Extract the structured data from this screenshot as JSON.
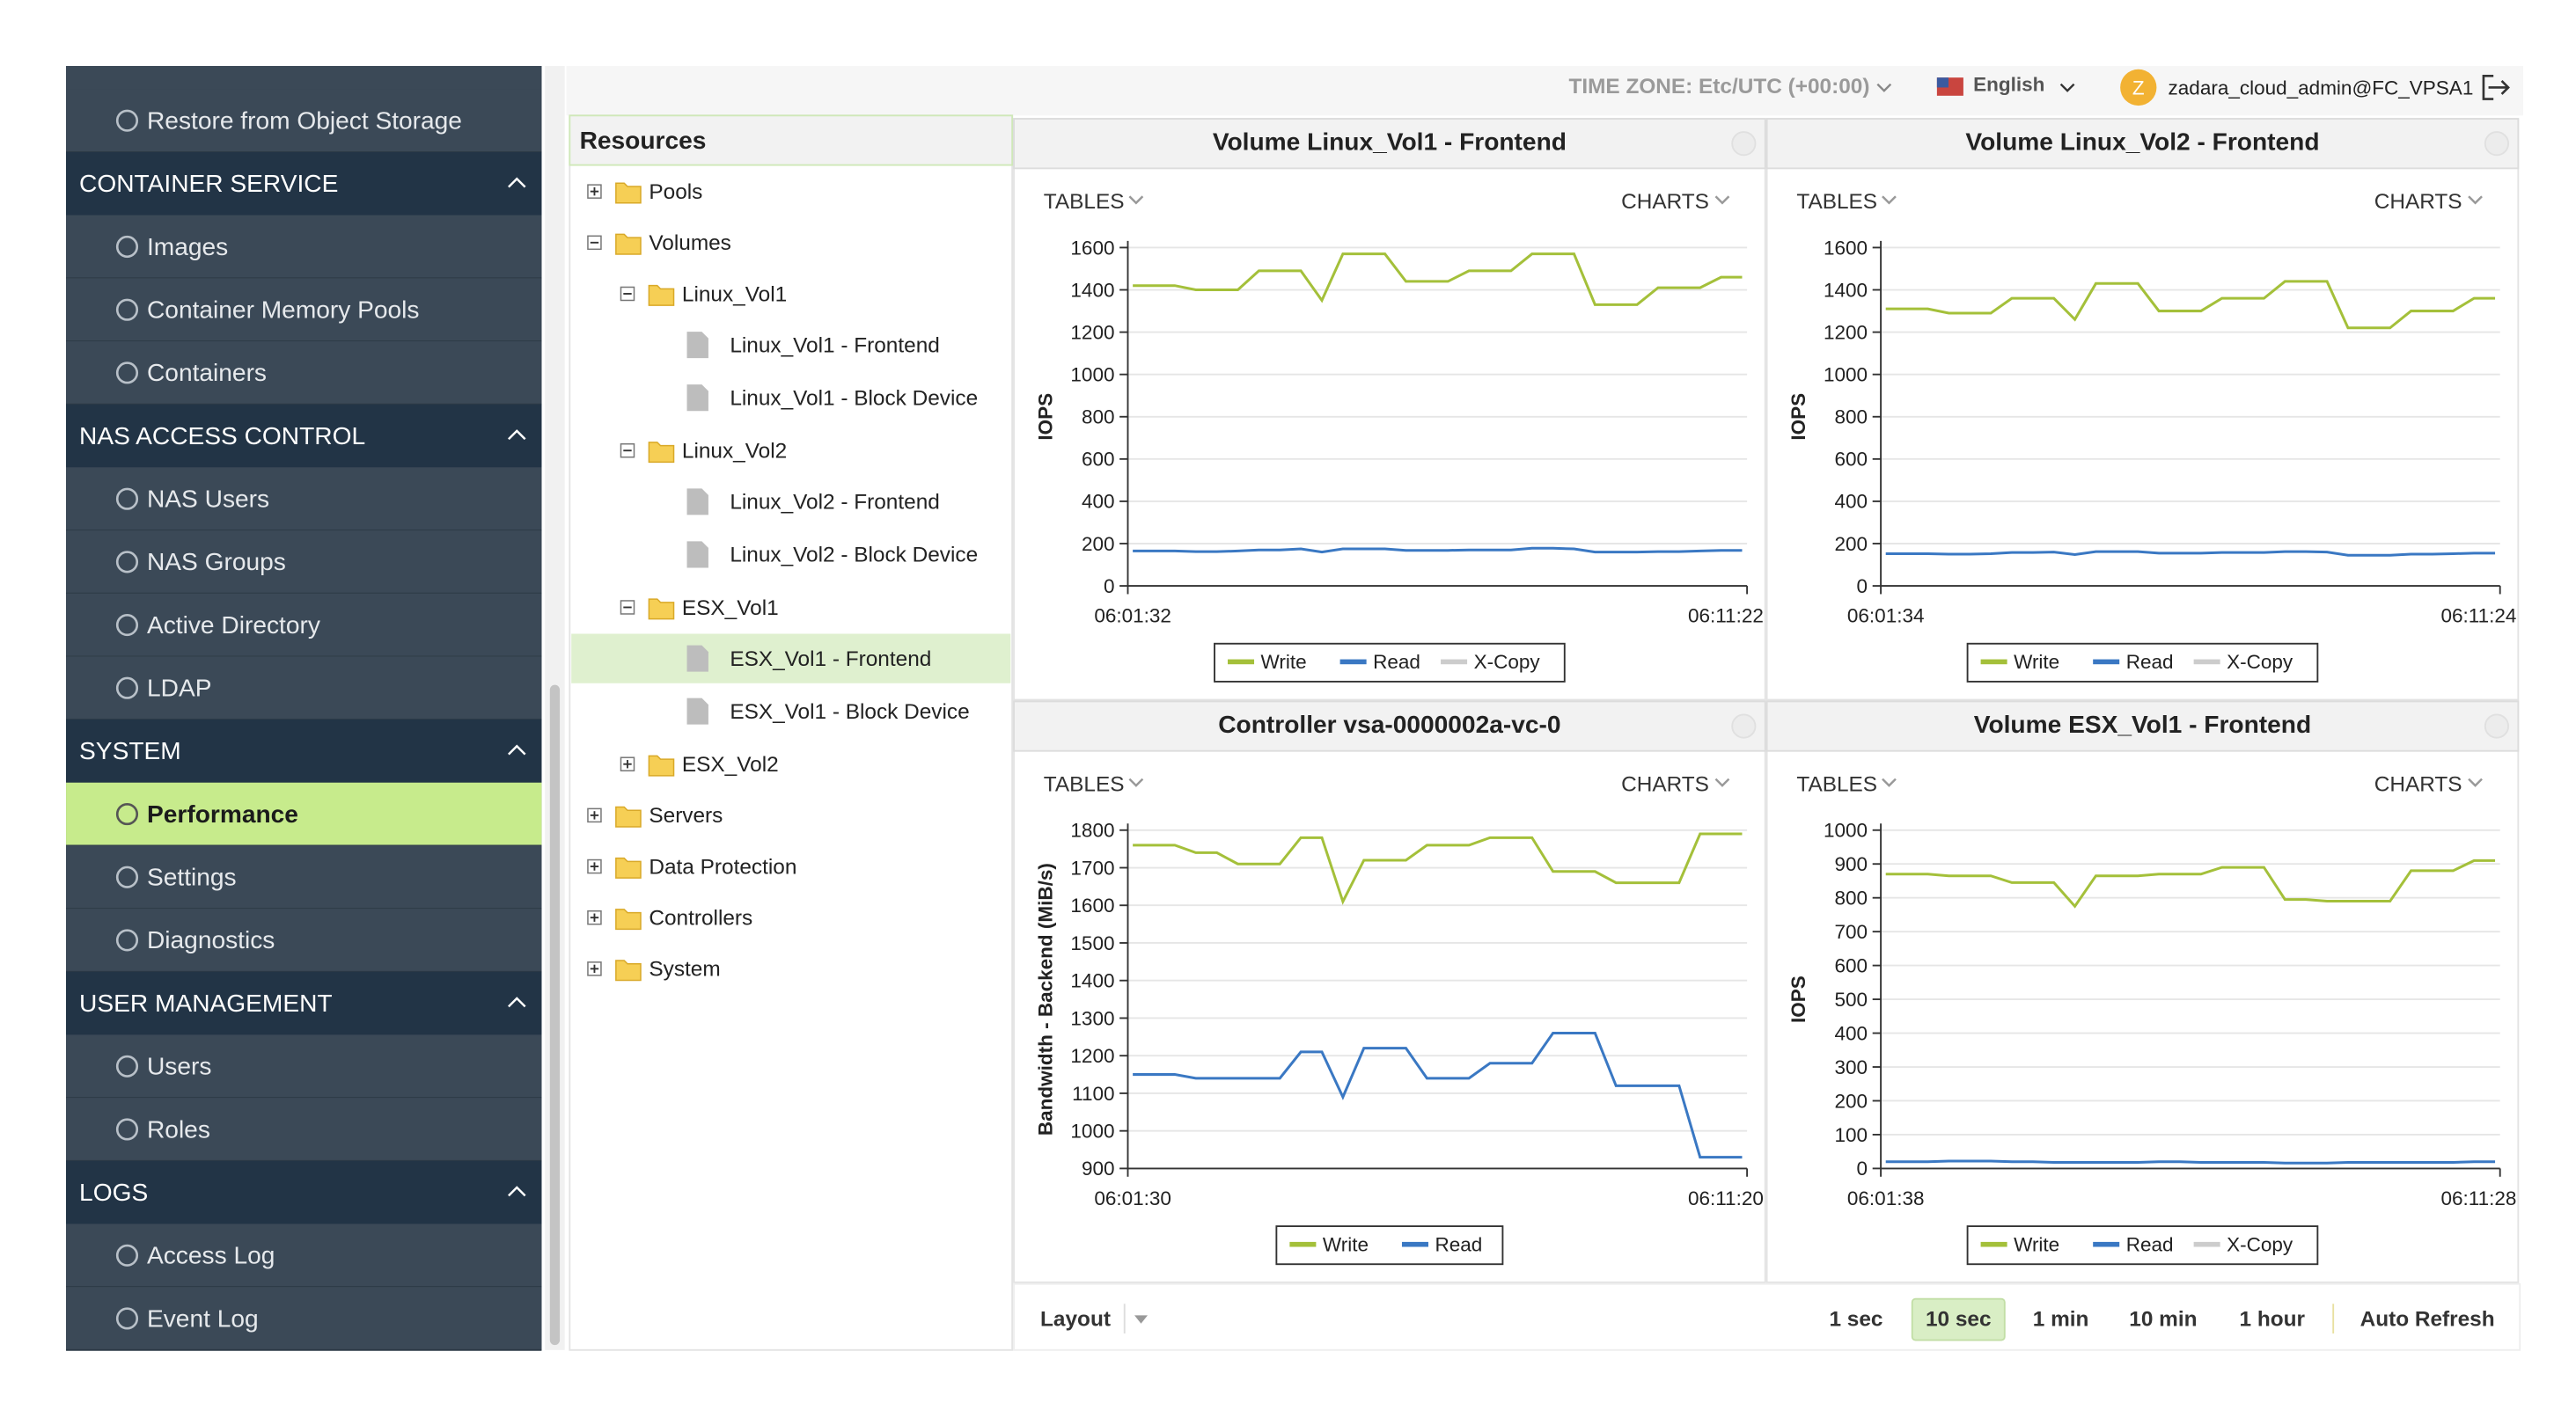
{
  "header": {
    "timezone": "TIME ZONE: Etc/UTC (+00:00)",
    "language": "English",
    "avatar": "Z",
    "user": "zadara_cloud_admin@FC_VPSA1"
  },
  "sidebar": {
    "top_items": [
      "Restore from Object Storage"
    ],
    "sections": [
      {
        "title": "CONTAINER SERVICE",
        "items": [
          "Images",
          "Container Memory Pools",
          "Containers"
        ]
      },
      {
        "title": "NAS ACCESS CONTROL",
        "items": [
          "NAS Users",
          "NAS Groups",
          "Active Directory",
          "LDAP"
        ]
      },
      {
        "title": "SYSTEM",
        "items": [
          "Performance",
          "Settings",
          "Diagnostics"
        ],
        "active_index": 0
      },
      {
        "title": "USER MANAGEMENT",
        "items": [
          "Users",
          "Roles"
        ]
      },
      {
        "title": "LOGS",
        "items": [
          "Access Log",
          "Event Log"
        ]
      }
    ]
  },
  "resources": {
    "title": "Resources",
    "tree": [
      {
        "label": "Pools",
        "collapsed": true
      },
      {
        "label": "Volumes",
        "children": [
          {
            "label": "Linux_Vol1",
            "children": [
              {
                "label": "Linux_Vol1 - Frontend"
              },
              {
                "label": "Linux_Vol1 - Block Device"
              }
            ]
          },
          {
            "label": "Linux_Vol2",
            "children": [
              {
                "label": "Linux_Vol2 - Frontend"
              },
              {
                "label": "Linux_Vol2 - Block Device"
              }
            ]
          },
          {
            "label": "ESX_Vol1",
            "children": [
              {
                "label": "ESX_Vol1 - Frontend",
                "selected": true
              },
              {
                "label": "ESX_Vol1 - Block Device"
              }
            ]
          },
          {
            "label": "ESX_Vol2",
            "collapsed": true
          }
        ]
      },
      {
        "label": "Servers",
        "collapsed": true
      },
      {
        "label": "Data Protection",
        "collapsed": true
      },
      {
        "label": "Controllers",
        "collapsed": true
      },
      {
        "label": "System",
        "collapsed": true
      }
    ]
  },
  "charts": [
    {
      "type": "line",
      "title": "Volume Linux_Vol1 - Frontend",
      "tables_label": "TABLES",
      "charts_label": "CHARTS",
      "ylabel": "IOPS",
      "ylim": [
        0,
        1600
      ],
      "yticks": [
        0,
        200,
        400,
        600,
        800,
        1000,
        1200,
        1400,
        1600
      ],
      "x_labels": [
        "06:01:32",
        "06:11:22"
      ],
      "series": [
        {
          "name": "Write",
          "color": "#a4c03a",
          "values": [
            1420,
            1420,
            1420,
            1400,
            1400,
            1400,
            1490,
            1490,
            1490,
            1350,
            1570,
            1570,
            1570,
            1440,
            1440,
            1440,
            1490,
            1490,
            1490,
            1570,
            1570,
            1570,
            1330,
            1330,
            1330,
            1410,
            1410,
            1410,
            1460,
            1460
          ]
        },
        {
          "name": "Read",
          "color": "#3a78c3",
          "values": [
            165,
            165,
            165,
            162,
            162,
            165,
            170,
            170,
            175,
            160,
            175,
            175,
            175,
            168,
            168,
            168,
            170,
            170,
            170,
            178,
            178,
            175,
            160,
            160,
            160,
            162,
            162,
            165,
            168,
            168
          ]
        },
        {
          "name": "X-Copy",
          "color": "#cccccc",
          "values": [
            null,
            null,
            null,
            null,
            null,
            null,
            null,
            null,
            null,
            null,
            null,
            null,
            null,
            null,
            null,
            null,
            null,
            null,
            null,
            null,
            null,
            null,
            null,
            null,
            null,
            null,
            null,
            null,
            null,
            null
          ]
        }
      ]
    },
    {
      "type": "line",
      "title": "Volume Linux_Vol2 - Frontend",
      "tables_label": "TABLES",
      "charts_label": "CHARTS",
      "ylabel": "IOPS",
      "ylim": [
        0,
        1600
      ],
      "yticks": [
        0,
        200,
        400,
        600,
        800,
        1000,
        1200,
        1400,
        1600
      ],
      "x_labels": [
        "06:01:34",
        "06:11:24"
      ],
      "series": [
        {
          "name": "Write",
          "color": "#a4c03a",
          "values": [
            1310,
            1310,
            1310,
            1290,
            1290,
            1290,
            1360,
            1360,
            1360,
            1260,
            1430,
            1430,
            1430,
            1300,
            1300,
            1300,
            1360,
            1360,
            1360,
            1440,
            1440,
            1440,
            1220,
            1220,
            1220,
            1300,
            1300,
            1300,
            1360,
            1360
          ]
        },
        {
          "name": "Read",
          "color": "#3a78c3",
          "values": [
            152,
            152,
            152,
            150,
            150,
            152,
            158,
            158,
            160,
            148,
            162,
            162,
            162,
            155,
            155,
            155,
            158,
            158,
            158,
            162,
            162,
            160,
            145,
            145,
            145,
            150,
            150,
            152,
            155,
            155
          ]
        },
        {
          "name": "X-Copy",
          "color": "#cccccc",
          "values": [
            null,
            null,
            null,
            null,
            null,
            null,
            null,
            null,
            null,
            null,
            null,
            null,
            null,
            null,
            null,
            null,
            null,
            null,
            null,
            null,
            null,
            null,
            null,
            null,
            null,
            null,
            null,
            null,
            null,
            null
          ]
        }
      ]
    },
    {
      "type": "line",
      "title": "Controller vsa-0000002a-vc-0",
      "tables_label": "TABLES",
      "charts_label": "CHARTS",
      "ylabel": "Bandwidth - Backend (MiB/s)",
      "ylim": [
        900,
        1800
      ],
      "yticks": [
        900,
        1000,
        1100,
        1200,
        1300,
        1400,
        1500,
        1600,
        1700,
        1800
      ],
      "x_labels": [
        "06:01:30",
        "06:11:20"
      ],
      "series": [
        {
          "name": "Write",
          "color": "#a4c03a",
          "values": [
            1760,
            1760,
            1760,
            1740,
            1740,
            1710,
            1710,
            1710,
            1780,
            1780,
            1610,
            1720,
            1720,
            1720,
            1760,
            1760,
            1760,
            1780,
            1780,
            1780,
            1690,
            1690,
            1690,
            1660,
            1660,
            1660,
            1660,
            1790,
            1790,
            1790
          ]
        },
        {
          "name": "Read",
          "color": "#3a78c3",
          "values": [
            1150,
            1150,
            1150,
            1140,
            1140,
            1140,
            1140,
            1140,
            1210,
            1210,
            1090,
            1220,
            1220,
            1220,
            1140,
            1140,
            1140,
            1180,
            1180,
            1180,
            1260,
            1260,
            1260,
            1120,
            1120,
            1120,
            1120,
            930,
            930,
            930
          ]
        }
      ]
    },
    {
      "type": "line",
      "title": "Volume ESX_Vol1 - Frontend",
      "tables_label": "TABLES",
      "charts_label": "CHARTS",
      "ylabel": "IOPS",
      "ylim": [
        0,
        1000
      ],
      "yticks": [
        0,
        100,
        200,
        300,
        400,
        500,
        600,
        700,
        800,
        900,
        1000
      ],
      "x_labels": [
        "06:01:38",
        "06:11:28"
      ],
      "series": [
        {
          "name": "Write",
          "color": "#a4c03a",
          "values": [
            870,
            870,
            870,
            865,
            865,
            865,
            845,
            845,
            845,
            775,
            865,
            865,
            865,
            870,
            870,
            870,
            890,
            890,
            890,
            795,
            795,
            790,
            790,
            790,
            790,
            880,
            880,
            880,
            910,
            910
          ]
        },
        {
          "name": "Read",
          "color": "#3a78c3",
          "values": [
            20,
            20,
            20,
            22,
            22,
            22,
            20,
            20,
            18,
            18,
            18,
            18,
            18,
            20,
            20,
            18,
            18,
            18,
            18,
            16,
            16,
            16,
            18,
            18,
            18,
            18,
            18,
            18,
            20,
            20
          ]
        },
        {
          "name": "X-Copy",
          "color": "#cccccc",
          "values": [
            null,
            null,
            null,
            null,
            null,
            null,
            null,
            null,
            null,
            null,
            null,
            null,
            null,
            null,
            null,
            null,
            null,
            null,
            null,
            null,
            null,
            null,
            null,
            null,
            null,
            null,
            null,
            null,
            null,
            null
          ]
        }
      ]
    }
  ],
  "footer": {
    "layout": "Layout",
    "time_buttons": [
      "1 sec",
      "10 sec",
      "1 min",
      "10 min",
      "1 hour"
    ],
    "active_index": 1,
    "auto_refresh": "Auto Refresh"
  }
}
